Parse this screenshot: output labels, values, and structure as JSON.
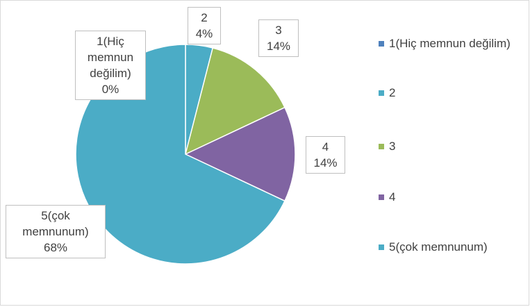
{
  "chart_data": {
    "type": "pie",
    "categories": [
      "1(Hiç memnun değilim)",
      "2",
      "3",
      "4",
      "5(çok memnunum)"
    ],
    "values": [
      0,
      4,
      14,
      14,
      68
    ],
    "value_labels": [
      "0%",
      "4%",
      "14%",
      "14%",
      "68%"
    ],
    "colors": [
      "#4f81bd",
      "#4bacc6",
      "#9bbb59",
      "#8064a2",
      "#4bacc6"
    ],
    "legend": "right"
  }
}
